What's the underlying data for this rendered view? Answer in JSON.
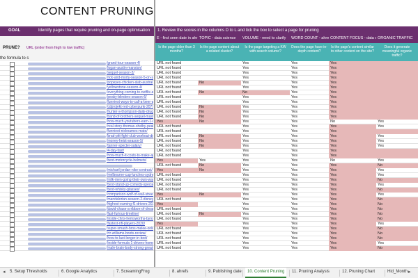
{
  "sheet": {
    "title": "CONTENT PRUNING",
    "goal_label": "GOAL",
    "goal_text": "Identify pages that require pruning and on-page optimisation",
    "instructions": "1. Review the scores in the columns D to L and tick the box to select a page for pruning",
    "prune_header": "PRUNE?",
    "url_header": "URL (order from high to low traffic)",
    "formula_note": "the formula to s"
  },
  "columns": [
    {
      "key": "age",
      "category": "E - first seen date in ahr",
      "question": "Is the page older than 3 months?"
    },
    {
      "key": "topic",
      "category": "TOPIC - data science",
      "question": "Is the page content about a related cluster?"
    },
    {
      "key": "volume",
      "category": "VOLUME - need to clarify",
      "question": "Is the page targeting a KW with search volume?"
    },
    {
      "key": "word",
      "category": "WORD COUNT - ahrefs",
      "question": "Does the page have in-depth content?"
    },
    {
      "key": "focus",
      "category": "CONTENT FOCUS - data science",
      "question": "Is the page's content similar to other content on the site?"
    },
    {
      "key": "organic",
      "category": "ORGANIC TRAFFIC",
      "question": "Does it generate meaningful organic traffic?"
    }
  ],
  "rows": [
    {
      "url": "/grand-tour-season-4/",
      "age": "URL not found",
      "topic": "",
      "volume": "Yes",
      "word": "Yes",
      "focus": "Yes",
      "organic": ""
    },
    {
      "url": "/logan-austin-mansion/",
      "age": "URL not found",
      "topic": "",
      "volume": "Yes",
      "word": "Yes",
      "focus": "Yes",
      "organic": ""
    },
    {
      "url": "/sequel-season-2/",
      "age": "URL not found",
      "topic": "",
      "volume": "Yes",
      "word": "Yes",
      "focus": "Yes",
      "organic": ""
    },
    {
      "url": "/rick-and-morty-season-5-on-sc",
      "age": "URL not found",
      "topic": "",
      "volume": "Yes",
      "word": "Yes",
      "focus": "Yes",
      "organic": ""
    },
    {
      "url": "/popeyes-chicken-slab-austral",
      "age": "URL not found",
      "topic": "No",
      "volume": "Yes",
      "word": "Yes",
      "focus": "Yes",
      "organic": ""
    },
    {
      "url": "/yellowstone-season-4/",
      "age": "URL not found",
      "topic": "",
      "volume": "Yes",
      "word": "Yes",
      "focus": "Yes",
      "organic": ""
    },
    {
      "url": "/everything-coming-to-netflix-au",
      "age": "URL not found",
      "topic": "No",
      "volume": "No",
      "word": "Yes",
      "focus": "Yes",
      "organic": ""
    },
    {
      "url": "/peaky-blinders-season-6/",
      "age": "URL not found",
      "topic": "",
      "volume": "Yes",
      "word": "Yes",
      "focus": "Yes",
      "organic": ""
    },
    {
      "url": "/funniest-ways-to-call-a-beer-a-be",
      "age": "URL not found",
      "topic": "",
      "volume": "Yes",
      "word": "Yes",
      "focus": "Yes",
      "organic": ""
    },
    {
      "url": "/cdprojekt-red-cyberpunk-2077-",
      "age": "URL not found",
      "topic": "No",
      "volume": "Yes",
      "word": "Yes",
      "focus": "Yes",
      "organic": ""
    },
    {
      "url": "/hunter-s-thompson-daily-drug-s",
      "age": "URL not found",
      "topic": "No",
      "volume": "Yes",
      "word": "Yes",
      "focus": "Yes",
      "organic": ""
    },
    {
      "url": "/band-of-brothers-sequel-maste",
      "age": "URL not found",
      "topic": "No",
      "volume": "Yes",
      "word": "Yes",
      "focus": "Yes",
      "organic": ""
    },
    {
      "url": "/how-much-youtubers-earn-1-mil",
      "age": "Yes",
      "topic": "No",
      "volume": "Yes",
      "word": "Yes",
      "focus": "No",
      "organic": "Yes"
    },
    {
      "url": "/real-story-thomas-shelby-peaky",
      "age": "URL not found",
      "topic": "",
      "volume": "Yes",
      "word": "Yes",
      "focus": "Yes",
      "organic": "Yes"
    },
    {
      "url": "/funniest-nicknames-mate/",
      "age": "URL not found",
      "topic": "",
      "volume": "Yes",
      "word": "Yes",
      "focus": "Yes",
      "organic": ""
    },
    {
      "url": "/brad-pitt-fight-club-workout-diet/",
      "age": "URL not found",
      "topic": "No",
      "volume": "Yes",
      "word": "Yes",
      "focus": "Yes",
      "organic": "Yes"
    },
    {
      "url": "/money-heist-season-5/",
      "age": "URL not found",
      "topic": "No",
      "volume": "Yes",
      "word": "Yes",
      "focus": "Yes",
      "organic": "Yes"
    },
    {
      "url": "/tanner-specter-salary/",
      "age": "URL not found",
      "topic": "No",
      "volume": "Yes",
      "word": "Yes",
      "focus": "Yes",
      "organic": "Yes"
    },
    {
      "url": "/4-day-fast/",
      "age": "URL not found",
      "topic": "",
      "volume": "Yes",
      "word": "Yes",
      "focus": "Yes",
      "organic": ""
    },
    {
      "url": "/how-much-it-costs-to-make-apple",
      "age": "URL not found",
      "topic": "",
      "volume": "Yes",
      "word": "Yes",
      "focus": "Yes",
      "organic": ""
    },
    {
      "url": "/best-motorcycle-helmets/",
      "age": "Yes",
      "topic": "Yes",
      "volume": "Yes",
      "word": "Yes",
      "focus": "No",
      "organic": "Yes"
    },
    {
      "url": "",
      "age": "URL not found",
      "topic": "No",
      "volume": "Yes",
      "word": "Yes",
      "focus": "Yes",
      "organic": "No"
    },
    {
      "url": "/michael-jordan-nike-contract/",
      "age": "Yes",
      "topic": "No",
      "volume": "Yes",
      "word": "Yes",
      "focus": "Yes",
      "organic": "Yes"
    },
    {
      "url": "/melbourne-cup-lunches-sydney/",
      "age": "URL not found",
      "topic": "",
      "volume": "Yes",
      "word": "Yes",
      "focus": "Yes",
      "organic": "Yes"
    },
    {
      "url": "/milk-men-going-their-own-way-mo",
      "age": "URL not found",
      "topic": "",
      "volume": "Yes",
      "word": "Yes",
      "focus": "Yes",
      "organic": "No"
    },
    {
      "url": "/best-stand-up-comedy-specials",
      "age": "URL not found",
      "topic": "",
      "volume": "Yes",
      "word": "Yes",
      "focus": "Yes",
      "organic": "Yes"
    },
    {
      "url": "/best-whisky-glasses/",
      "age": "URL not found",
      "topic": "",
      "volume": "Yes",
      "word": "Yes",
      "focus": "Yes",
      "organic": "No"
    },
    {
      "url": "/comparison-wolf-of-wall-street",
      "age": "Yes",
      "topic": "No",
      "volume": "Yes",
      "word": "Yes",
      "focus": "Yes",
      "organic": "Yes"
    },
    {
      "url": "/mandalorian-season-2-disney-p",
      "age": "URL not found",
      "topic": "",
      "volume": "Yes",
      "word": "Yes",
      "focus": "Yes",
      "organic": "No"
    },
    {
      "url": "/highest-earning-f1-drivers-2020/",
      "age": "Yes",
      "topic": "",
      "volume": "Yes",
      "word": "Yes",
      "focus": "Yes",
      "organic": "No"
    },
    {
      "url": "/david-chase-a-ribbon-of-dreams",
      "age": "URL not found",
      "topic": "",
      "volume": "Yes",
      "word": "Yes",
      "focus": "Yes",
      "organic": "No"
    },
    {
      "url": "/fast-furious-timeline/",
      "age": "URL not found",
      "topic": "No",
      "volume": "Yes",
      "word": "Yes",
      "focus": "Yes",
      "organic": "No"
    },
    {
      "url": "/inside-chris-hemsworths-byron",
      "age": "URL not found",
      "topic": "",
      "volume": "Yes",
      "word": "Yes",
      "focus": "Yes",
      "organic": "No"
    },
    {
      "url": "/fastest-nfl-players-2020/",
      "age": "Yes",
      "topic": "",
      "volume": "Yes",
      "word": "Yes",
      "focus": "Yes",
      "organic": "Yes"
    },
    {
      "url": "/super-smash-bros-melee-online",
      "age": "URL not found",
      "topic": "",
      "volume": "Yes",
      "word": "Yes",
      "focus": "Yes",
      "organic": "No"
    },
    {
      "url": "/rtr-williams-boots-review/",
      "age": "URL not found",
      "topic": "",
      "volume": "Yes",
      "word": "Yes",
      "focus": "Yes",
      "organic": "No"
    },
    {
      "url": "/how-to-last-longer-in-bed/",
      "age": "URL not found",
      "topic": "",
      "volume": "Yes",
      "word": "Yes",
      "focus": "Yes",
      "organic": "No"
    },
    {
      "url": "/inside-formula-1-drivers-homes",
      "age": "URL not found",
      "topic": "",
      "volume": "Yes",
      "word": "Yes",
      "focus": "Yes",
      "organic": "Yes"
    },
    {
      "url": "/male-brain-body-strong-great-stru",
      "age": "URL not found",
      "topic": "",
      "volume": "Yes",
      "word": "Yes",
      "focus": "Yes",
      "organic": "No"
    }
  ],
  "tabs": [
    {
      "label": "5. Setup Thresholds",
      "active": false
    },
    {
      "label": "6. Google Analytics",
      "active": false
    },
    {
      "label": "7. ScreamingFrog",
      "active": false
    },
    {
      "label": "8. ahrefs",
      "active": false
    },
    {
      "label": "9. Publishing date",
      "active": false
    },
    {
      "label": "10. Content Pruning",
      "active": true
    },
    {
      "label": "11. Pruning Analysis",
      "active": false
    },
    {
      "label": "12. Pruning Chart",
      "active": false
    },
    {
      "label": "Hid_Month",
      "active": false
    }
  ],
  "colors": {
    "header_purple": "#6b2f6e",
    "header_teal": "#4ab3b4",
    "flag_pink": "#e6b8b8",
    "active_tab_green": "#2e7d32"
  }
}
